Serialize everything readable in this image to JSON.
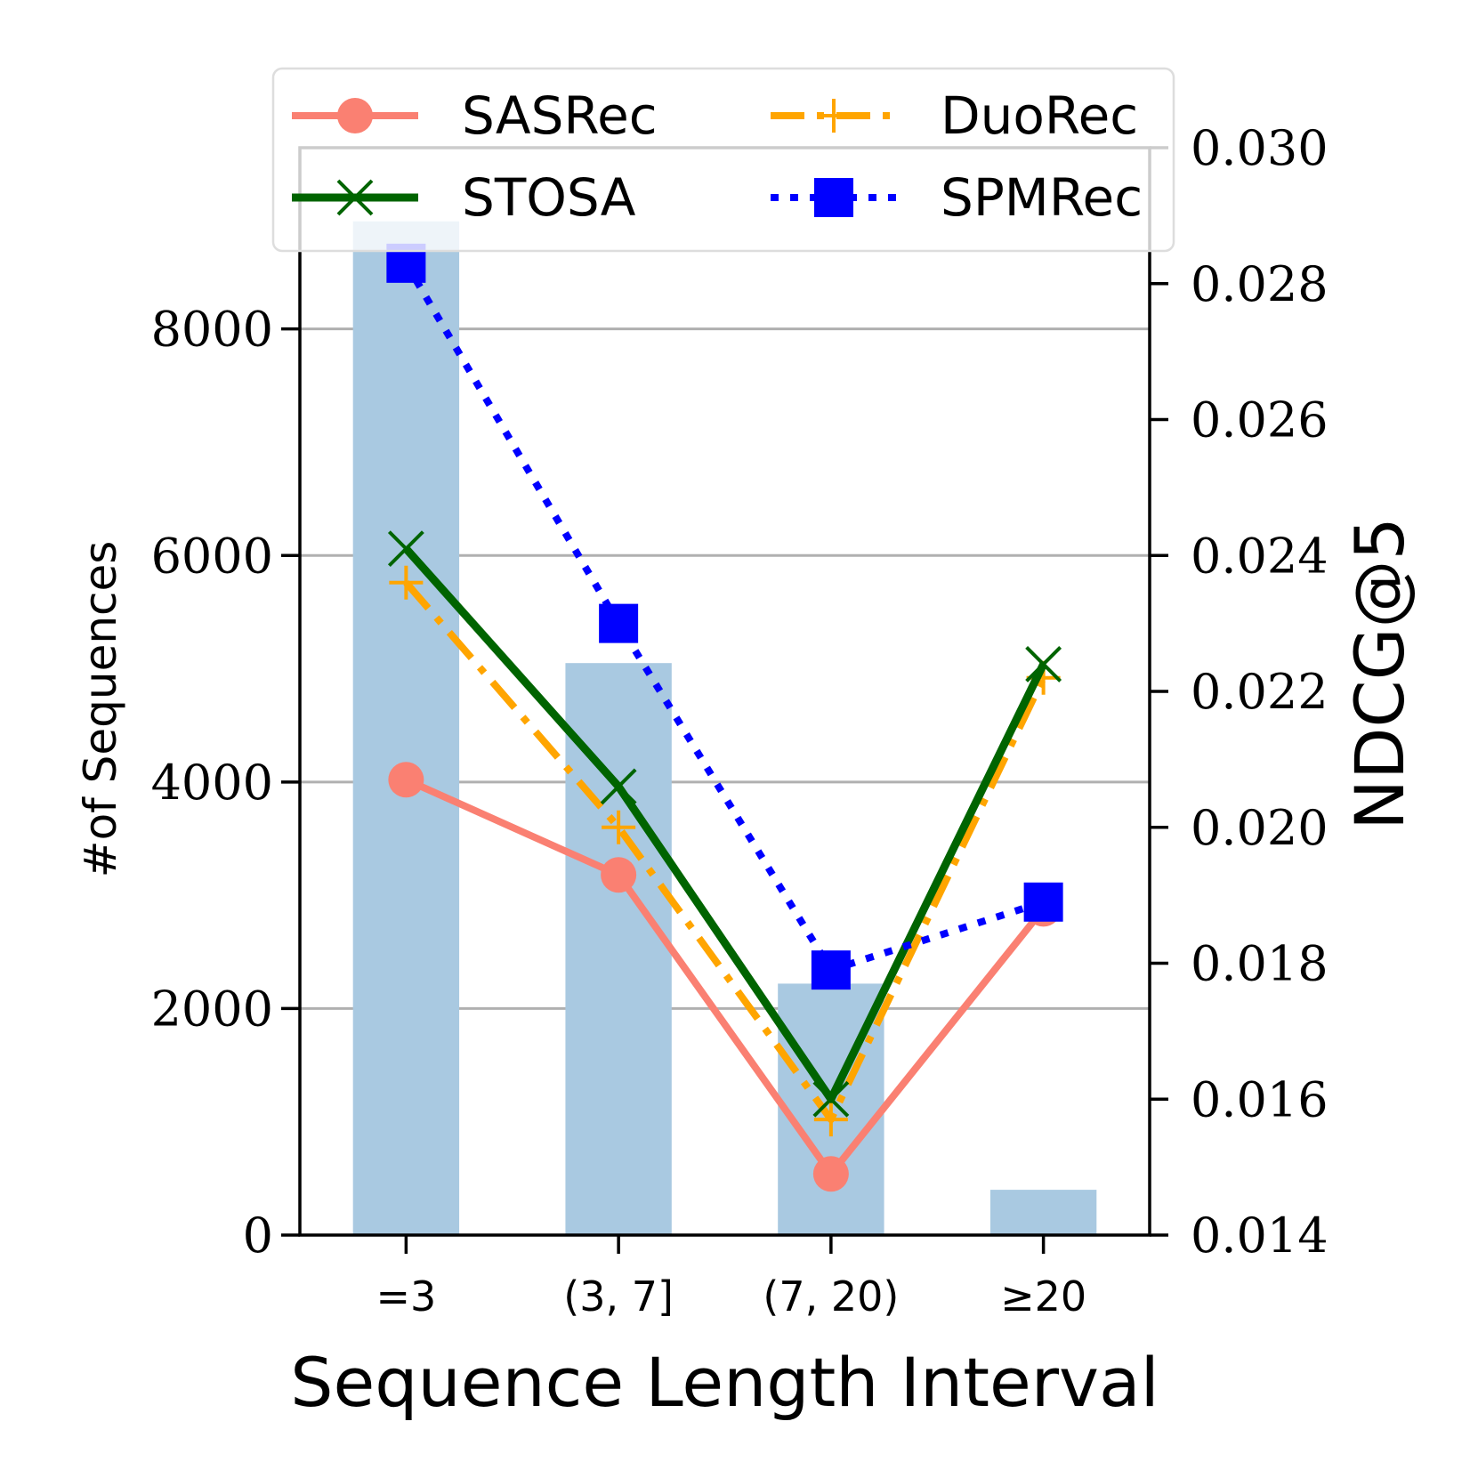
{
  "chart_data": {
    "type": "bar+line (dual axis)",
    "categories": [
      "=3",
      "(3, 7]",
      "(7, 20)",
      "≥20"
    ],
    "xlabel": "Sequence Length Interval",
    "ylabel_left": "#of Sequences",
    "ylabel_right": "NDCG@5",
    "ylim_left": [
      0,
      9600
    ],
    "yticks_left": [
      0,
      2000,
      4000,
      6000,
      8000
    ],
    "ylim_right": [
      0.014,
      0.03
    ],
    "yticks_right": [
      "0.014",
      "0.016",
      "0.018",
      "0.020",
      "0.022",
      "0.024",
      "0.026",
      "0.028",
      "0.030"
    ],
    "grid": "horizontal, left axis",
    "legend_position": "top, 2 columns",
    "bars": {
      "name": "#of Sequences",
      "color": "#a9c9e1",
      "values": [
        8950,
        5050,
        2220,
        400
      ]
    },
    "series": [
      {
        "name": "SASRec",
        "color": "#fa8072",
        "linestyle": "solid",
        "marker": "circle",
        "values": [
          0.0207,
          0.0193,
          0.0149,
          0.0188
        ]
      },
      {
        "name": "DuoRec",
        "color": "#ffa500",
        "linestyle": "dashdot",
        "marker": "plus",
        "values": [
          0.0236,
          0.02,
          0.0157,
          0.0222
        ]
      },
      {
        "name": "STOSA",
        "color": "#006400",
        "linestyle": "solid",
        "marker": "x",
        "values": [
          0.0241,
          0.0206,
          0.016,
          0.0224
        ]
      },
      {
        "name": "SPMRec",
        "color": "#0000ff",
        "linestyle": "dotted",
        "marker": "square",
        "values": [
          0.0283,
          0.023,
          0.0179,
          0.0189
        ]
      }
    ]
  }
}
